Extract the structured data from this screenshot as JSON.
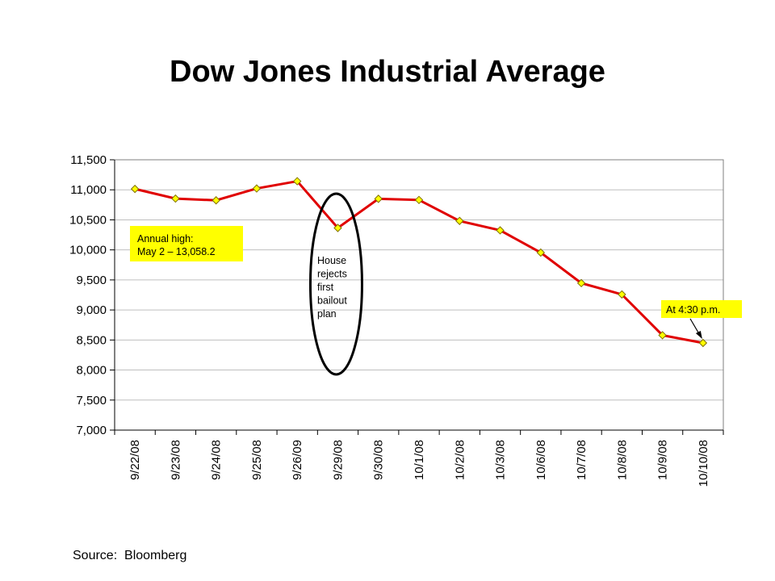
{
  "slide": {
    "title": "Dow Jones Industrial Average",
    "source": "Source:  Bloomberg"
  },
  "chart_data": {
    "type": "line",
    "title": "Dow Jones Industrial Average",
    "xlabel": "",
    "ylabel": "",
    "categories": [
      "9/22/08",
      "9/23/08",
      "9/24/08",
      "9/25/08",
      "9/26/09",
      "9/29/08",
      "9/30/08",
      "10/1/08",
      "10/2/08",
      "10/3/08",
      "10/6/08",
      "10/7/08",
      "10/8/08",
      "10/9/08",
      "10/10/08"
    ],
    "series": [
      {
        "values": [
          11015,
          10854,
          10825,
          11022,
          11143,
          10365,
          10850,
          10831,
          10482,
          10325,
          9955,
          9447,
          9258,
          8579,
          8451
        ]
      }
    ],
    "ylim": [
      7000,
      11500
    ],
    "yticks": [
      7000,
      7500,
      8000,
      8500,
      9000,
      9500,
      10000,
      10500,
      11000,
      11500
    ],
    "ytick_labels": [
      "7,000",
      "7,500",
      "8,000",
      "8,500",
      "9,000",
      "9,500",
      "10,000",
      "10,500",
      "11,000",
      "11,500"
    ],
    "grid": "horizontal",
    "line_color": "#e00000",
    "marker_color": "#ffff00",
    "annotations": {
      "annual_high": [
        "Annual high:",
        "May 2 – 13,058.2"
      ],
      "house_rejects": [
        "House",
        "rejects",
        "first",
        "bailout",
        "plan"
      ],
      "close_time": "At 4:30 p.m."
    }
  }
}
